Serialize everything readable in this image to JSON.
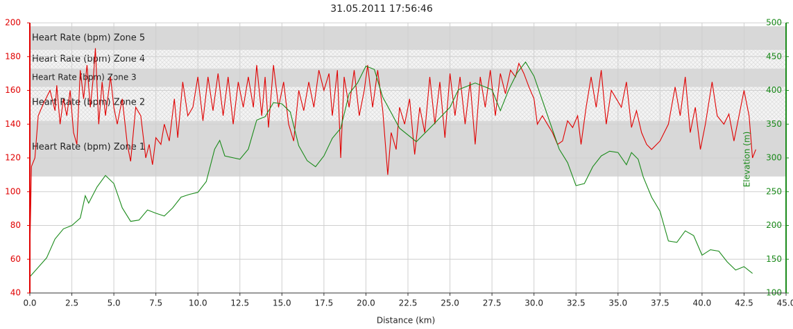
{
  "chart_data": {
    "type": "line",
    "title": "31.05.2011 17:56:46",
    "xlabel": "Distance (km)",
    "y2label": "Elevation (m)",
    "xlim": [
      0,
      45
    ],
    "xticks": [
      {
        "value": 0,
        "label": "0.0"
      },
      2.5,
      {
        "value": 5,
        "label": "5.0"
      },
      7.5,
      {
        "value": 10,
        "label": "10.0"
      },
      12.5,
      {
        "value": 15,
        "label": "15.0"
      },
      17.5,
      {
        "value": 20,
        "label": "20.0"
      },
      22.5,
      {
        "value": 25,
        "label": "25.0"
      },
      27.5,
      {
        "value": 30,
        "label": "30.0"
      },
      32.5,
      {
        "value": 35,
        "label": "35.0"
      },
      37.5,
      {
        "value": 40,
        "label": "40.0"
      },
      42.5,
      {
        "value": 45,
        "label": "45.0"
      }
    ],
    "ylim": [
      40,
      200
    ],
    "yticks": [
      40,
      60,
      80,
      100,
      120,
      140,
      160,
      180,
      200
    ],
    "y2lim": [
      100,
      500
    ],
    "y2ticks": [
      100,
      150,
      200,
      250,
      300,
      350,
      400,
      450,
      500
    ],
    "grid": true,
    "left_axis_color": "#e00000",
    "right_axis_color": "#1a8a1a",
    "zones": [
      {
        "label": "Heart Rate (bpm) Zone 1",
        "low": 109,
        "high": 142
      },
      {
        "label": "Heart Rate (bpm) Zone 2",
        "low": 142,
        "high": 162
      },
      {
        "label": "Heart Rate (bpm) Zone 3",
        "low": 162,
        "high": 173
      },
      {
        "label": "Heart Rate (bpm) Zone 4",
        "low": 173,
        "high": 184
      },
      {
        "label": "Heart Rate (bpm) Zone 5",
        "low": 184,
        "high": 198
      }
    ],
    "series": [
      {
        "color": "#e00000",
        "x": [
          0,
          0.1,
          0.3,
          0.5,
          0.8,
          1.2,
          1.5,
          1.6,
          1.8,
          2.0,
          2.2,
          2.4,
          2.6,
          2.8,
          3.0,
          3.2,
          3.4,
          3.6,
          3.8,
          3.9,
          4.1,
          4.3,
          4.5,
          4.8,
          5.0,
          5.2,
          5.5,
          5.8,
          6.0,
          6.3,
          6.6,
          6.9,
          7.1,
          7.3,
          7.5,
          7.8,
          8.0,
          8.3,
          8.6,
          8.8,
          9.1,
          9.4,
          9.7,
          10.0,
          10.3,
          10.6,
          10.9,
          11.2,
          11.5,
          11.8,
          12.1,
          12.4,
          12.7,
          13.0,
          13.3,
          13.5,
          13.8,
          14.0,
          14.2,
          14.5,
          14.8,
          15.1,
          15.4,
          15.7,
          16.0,
          16.3,
          16.6,
          16.9,
          17.2,
          17.5,
          17.8,
          18.0,
          18.3,
          18.5,
          18.7,
          19.0,
          19.3,
          19.6,
          19.9,
          20.1,
          20.4,
          20.7,
          21.0,
          21.3,
          21.5,
          21.8,
          22.0,
          22.3,
          22.6,
          22.9,
          23.2,
          23.5,
          23.8,
          24.1,
          24.4,
          24.7,
          25.0,
          25.3,
          25.6,
          25.9,
          26.2,
          26.5,
          26.8,
          27.1,
          27.4,
          27.7,
          28.0,
          28.3,
          28.6,
          28.9,
          29.1,
          29.4,
          29.7,
          30.0,
          30.2,
          30.5,
          30.8,
          31.1,
          31.4,
          31.7,
          32.0,
          32.3,
          32.6,
          32.8,
          33.1,
          33.4,
          33.7,
          34.0,
          34.3,
          34.6,
          34.9,
          35.2,
          35.5,
          35.8,
          36.1,
          36.4,
          36.7,
          37.0,
          37.5,
          38.0,
          38.4,
          38.7,
          39.0,
          39.3,
          39.6,
          39.9,
          40.2,
          40.6,
          40.9,
          41.3,
          41.6,
          41.9,
          42.2,
          42.5,
          42.8,
          43.0,
          43.2
        ],
        "values": [
          65,
          115,
          120,
          145,
          152,
          160,
          148,
          163,
          140,
          155,
          145,
          160,
          135,
          128,
          172,
          155,
          175,
          150,
          170,
          185,
          140,
          165,
          145,
          168,
          150,
          140,
          155,
          128,
          118,
          150,
          145,
          120,
          128,
          116,
          132,
          128,
          140,
          130,
          155,
          132,
          165,
          145,
          150,
          168,
          142,
          168,
          148,
          170,
          145,
          168,
          140,
          165,
          150,
          168,
          150,
          175,
          145,
          168,
          138,
          175,
          150,
          165,
          140,
          130,
          160,
          148,
          165,
          150,
          172,
          160,
          170,
          145,
          172,
          120,
          168,
          150,
          172,
          145,
          160,
          175,
          150,
          172,
          148,
          110,
          135,
          125,
          150,
          140,
          155,
          122,
          150,
          135,
          168,
          140,
          165,
          132,
          170,
          145,
          168,
          140,
          165,
          128,
          168,
          150,
          172,
          145,
          170,
          158,
          172,
          168,
          176,
          170,
          162,
          155,
          140,
          145,
          140,
          135,
          128,
          130,
          142,
          138,
          145,
          128,
          150,
          168,
          150,
          172,
          140,
          160,
          155,
          150,
          165,
          138,
          148,
          135,
          128,
          125,
          130,
          140,
          162,
          145,
          168,
          135,
          150,
          125,
          140,
          165,
          145,
          140,
          146,
          130,
          145,
          160,
          145,
          120,
          125
        ]
      },
      {
        "color": "#1a8a1a",
        "axis": "y2",
        "x": [
          0,
          1.0,
          1.5,
          2.0,
          2.5,
          3.0,
          3.3,
          3.5,
          4.0,
          4.5,
          5.0,
          5.5,
          6.0,
          6.5,
          7.0,
          7.5,
          8.0,
          8.5,
          9.0,
          9.5,
          10.0,
          10.5,
          11.0,
          11.3,
          11.6,
          12.5,
          13.0,
          13.5,
          14.0,
          14.5,
          15.0,
          15.5,
          16.0,
          16.5,
          17.0,
          17.5,
          18.0,
          18.5,
          19.0,
          19.5,
          20.0,
          20.5,
          21.0,
          22.0,
          23.0,
          24.0,
          25.0,
          25.5,
          26.5,
          27.5,
          28.0,
          28.5,
          29.0,
          29.5,
          30.0,
          30.5,
          31.0,
          31.5,
          32.0,
          32.5,
          33.0,
          33.5,
          34.0,
          34.5,
          35.0,
          35.5,
          35.8,
          36.2,
          36.5,
          37.0,
          37.5,
          38.0,
          38.5,
          39.0,
          39.5,
          40.0,
          40.5,
          41.0,
          41.5,
          42.0,
          42.5,
          43.0
        ],
        "values": [
          124,
          152,
          180,
          195,
          200,
          211,
          244,
          233,
          257,
          274,
          262,
          226,
          206,
          208,
          223,
          218,
          214,
          226,
          242,
          246,
          249,
          265,
          313,
          326,
          303,
          298,
          313,
          356,
          361,
          382,
          380,
          368,
          318,
          296,
          287,
          303,
          329,
          344,
          395,
          411,
          436,
          431,
          390,
          344,
          324,
          349,
          375,
          401,
          411,
          401,
          370,
          401,
          426,
          442,
          421,
          385,
          349,
          313,
          293,
          259,
          262,
          287,
          303,
          310,
          308,
          290,
          308,
          298,
          272,
          242,
          221,
          177,
          175,
          192,
          185,
          156,
          164,
          162,
          146,
          134,
          139,
          129
        ]
      }
    ]
  }
}
